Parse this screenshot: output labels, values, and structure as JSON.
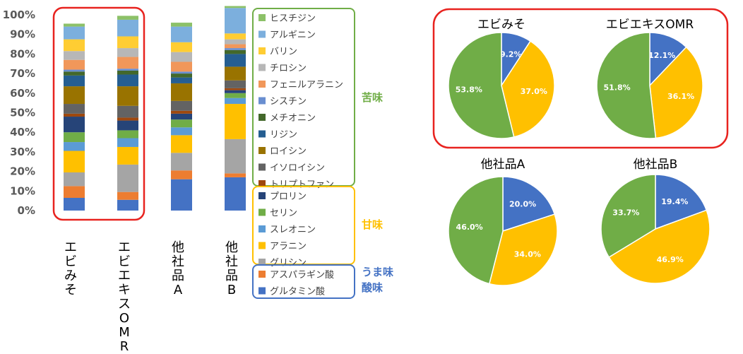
{
  "chart_data": [
    {
      "type": "bar",
      "stacked": true,
      "normalized": true,
      "categories": [
        "エビみそ",
        "エビエキスOMR",
        "他社品A",
        "他社品B"
      ],
      "ylim": [
        0,
        100
      ],
      "y_ticks": [
        "0%",
        "10%",
        "20%",
        "30%",
        "40%",
        "50%",
        "60%",
        "70%",
        "80%",
        "90%",
        "100%"
      ],
      "highlighted_categories": [
        "エビみそ",
        "エビエキスOMR"
      ],
      "series": [
        {
          "name": "グルタミン酸",
          "color": "#4472C4",
          "values": [
            6.5,
            5.5,
            16,
            17
          ]
        },
        {
          "name": "アスパラギン酸",
          "color": "#ED7D31",
          "values": [
            6,
            4,
            4.5,
            2
          ]
        },
        {
          "name": "グリシン",
          "color": "#A5A5A5",
          "values": [
            7,
            14,
            9,
            17.5
          ]
        },
        {
          "name": "アラニン",
          "color": "#FFC000",
          "values": [
            11,
            9,
            9,
            18
          ]
        },
        {
          "name": "スレオニン",
          "color": "#5B9BD5",
          "values": [
            4.5,
            4.5,
            4,
            3
          ]
        },
        {
          "name": "セリン",
          "color": "#70AD47",
          "values": [
            5,
            4,
            4,
            2.5
          ]
        },
        {
          "name": "プロリン",
          "color": "#264478",
          "values": [
            8,
            5,
            3,
            1.5
          ]
        },
        {
          "name": "トリプトファン",
          "color": "#9E480E",
          "values": [
            1.5,
            1.5,
            1.5,
            1
          ]
        },
        {
          "name": "イソロイシン",
          "color": "#636363",
          "values": [
            5,
            6,
            5,
            4
          ]
        },
        {
          "name": "ロイシン",
          "color": "#997300",
          "values": [
            9,
            10,
            9,
            7
          ]
        },
        {
          "name": "リジン",
          "color": "#255E91",
          "values": [
            5.5,
            6,
            3,
            6.5
          ]
        },
        {
          "name": "メチオニン",
          "color": "#43682B",
          "values": [
            2,
            2,
            2,
            2
          ]
        },
        {
          "name": "シスチン",
          "color": "#698ED0",
          "values": [
            1,
            1,
            1,
            1
          ]
        },
        {
          "name": "フェニルアラニン",
          "color": "#F1975A",
          "values": [
            5,
            6,
            5,
            2
          ]
        },
        {
          "name": "チロシン",
          "color": "#B7B7B7",
          "values": [
            4.5,
            4.5,
            5,
            2.5
          ]
        },
        {
          "name": "バリン",
          "color": "#FFCD33",
          "values": [
            6,
            6,
            5,
            3
          ]
        },
        {
          "name": "アルギニン",
          "color": "#7CAFDD",
          "values": [
            6.5,
            8.5,
            8,
            13
          ]
        },
        {
          "name": "ヒスチジン",
          "color": "#8CC168",
          "values": [
            1.5,
            2,
            2,
            1
          ]
        }
      ],
      "legend_groups": [
        {
          "label": "苦味",
          "color": "#70AD47",
          "items": [
            "ヒスチジン",
            "アルギニン",
            "バリン",
            "チロシン",
            "フェニルアラニン",
            "シスチン",
            "メチオニン",
            "リジン",
            "ロイシン",
            "イソロイシン",
            "トリプトファン"
          ]
        },
        {
          "label": "甘味",
          "color": "#FFC000",
          "items": [
            "プロリン",
            "セリン",
            "スレオニン",
            "アラニン",
            "グリシン"
          ]
        },
        {
          "label": "うま味\n酸味",
          "label_lines": [
            "うま味",
            "酸味"
          ],
          "color": "#4472C4",
          "items": [
            "アスパラギン酸",
            "グルタミン酸"
          ]
        }
      ]
    },
    {
      "type": "pie",
      "title": "エビみそ",
      "slices": [
        {
          "label": "9.2%",
          "value": 9.2,
          "color": "#4472C4"
        },
        {
          "label": "37.0%",
          "value": 37.0,
          "color": "#FFC000"
        },
        {
          "label": "53.8%",
          "value": 53.8,
          "color": "#70AD47"
        }
      ]
    },
    {
      "type": "pie",
      "title": "エビエキスOMR",
      "slices": [
        {
          "label": "12.1%",
          "value": 12.1,
          "color": "#4472C4"
        },
        {
          "label": "36.1%",
          "value": 36.1,
          "color": "#FFC000"
        },
        {
          "label": "51.8%",
          "value": 51.8,
          "color": "#70AD47"
        }
      ]
    },
    {
      "type": "pie",
      "title": "他社品A",
      "slices": [
        {
          "label": "20.0%",
          "value": 20.0,
          "color": "#4472C4"
        },
        {
          "label": "34.0%",
          "value": 34.0,
          "color": "#FFC000"
        },
        {
          "label": "46.0%",
          "value": 46.0,
          "color": "#70AD47"
        }
      ]
    },
    {
      "type": "pie",
      "title": "他社品B",
      "slices": [
        {
          "label": "19.4%",
          "value": 19.4,
          "color": "#4472C4"
        },
        {
          "label": "46.9%",
          "value": 46.9,
          "color": "#FFC000"
        },
        {
          "label": "33.7%",
          "value": 33.7,
          "color": "#70AD47"
        }
      ]
    }
  ],
  "colors": {
    "highlight_border": "#E8231F",
    "bitter_group_border": "#70AD47",
    "sweet_group_border": "#FFC000",
    "umami_group_border": "#4472C4"
  }
}
